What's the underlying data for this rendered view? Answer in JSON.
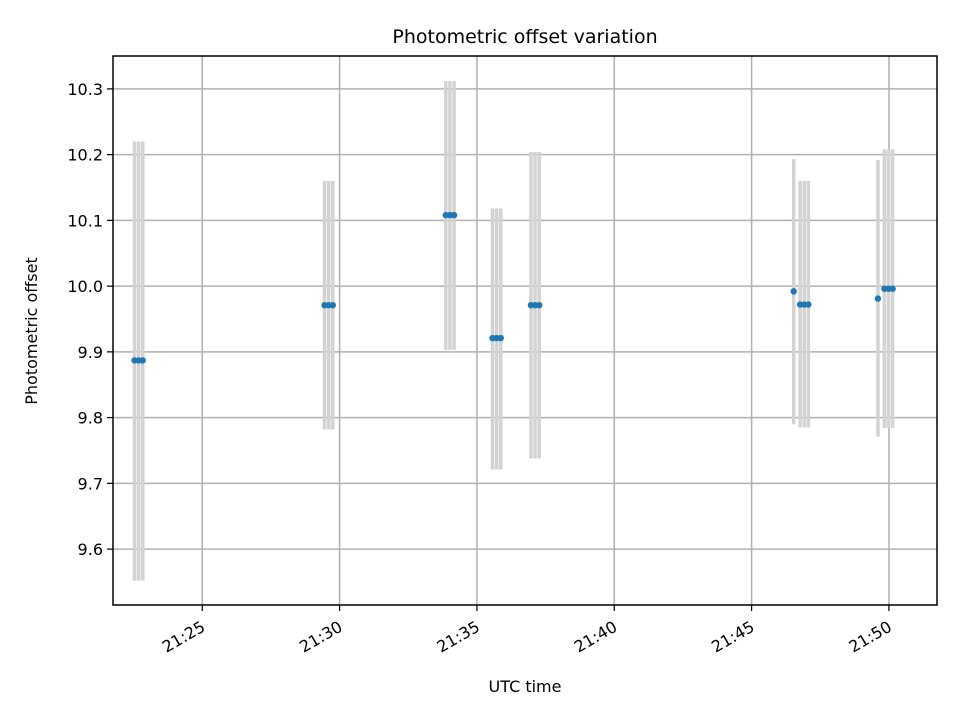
{
  "chart_data": {
    "type": "scatter",
    "title": "Photometric offset variation",
    "xlabel": "UTC time",
    "ylabel": "Photometric offset",
    "x_axis_kind": "time",
    "xlim": [
      "21:21:45",
      "21:51:45"
    ],
    "ylim": [
      9.515,
      10.35
    ],
    "x_ticks": [
      "21:25",
      "21:30",
      "21:35",
      "21:40",
      "21:45",
      "21:50"
    ],
    "y_ticks": [
      9.6,
      9.7,
      9.8,
      9.9,
      10.0,
      10.1,
      10.2,
      10.3
    ],
    "y_tick_labels": [
      "9.6",
      "9.7",
      "9.8",
      "9.9",
      "10.0",
      "10.1",
      "10.2",
      "10.3"
    ],
    "grid": true,
    "point_color": "#1f77b4",
    "errorbar_color": "#d3d3d3",
    "series": [
      {
        "points": [
          {
            "x": "21:22:32",
            "y": 9.887,
            "ylow": 9.552,
            "yhigh": 10.22
          },
          {
            "x": "21:22:41",
            "y": 9.887,
            "ylow": 9.552,
            "yhigh": 10.22
          },
          {
            "x": "21:22:50",
            "y": 9.887,
            "ylow": 9.552,
            "yhigh": 10.22
          },
          {
            "x": "21:29:27",
            "y": 9.971,
            "ylow": 9.782,
            "yhigh": 10.16
          },
          {
            "x": "21:29:36",
            "y": 9.971,
            "ylow": 9.782,
            "yhigh": 10.16
          },
          {
            "x": "21:29:45",
            "y": 9.971,
            "ylow": 9.782,
            "yhigh": 10.16
          },
          {
            "x": "21:33:52",
            "y": 10.108,
            "ylow": 9.903,
            "yhigh": 10.312
          },
          {
            "x": "21:34:01",
            "y": 10.108,
            "ylow": 9.903,
            "yhigh": 10.312
          },
          {
            "x": "21:34:10",
            "y": 10.108,
            "ylow": 9.903,
            "yhigh": 10.312
          },
          {
            "x": "21:35:34",
            "y": 9.921,
            "ylow": 9.721,
            "yhigh": 10.118
          },
          {
            "x": "21:35:43",
            "y": 9.921,
            "ylow": 9.721,
            "yhigh": 10.118
          },
          {
            "x": "21:35:52",
            "y": 9.921,
            "ylow": 9.721,
            "yhigh": 10.118
          },
          {
            "x": "21:36:58",
            "y": 9.971,
            "ylow": 9.738,
            "yhigh": 10.204
          },
          {
            "x": "21:37:07",
            "y": 9.971,
            "ylow": 9.738,
            "yhigh": 10.204
          },
          {
            "x": "21:37:16",
            "y": 9.971,
            "ylow": 9.738,
            "yhigh": 10.204
          },
          {
            "x": "21:46:32",
            "y": 9.992,
            "ylow": 9.79,
            "yhigh": 10.193
          },
          {
            "x": "21:46:46",
            "y": 9.972,
            "ylow": 9.785,
            "yhigh": 10.16
          },
          {
            "x": "21:46:55",
            "y": 9.972,
            "ylow": 9.785,
            "yhigh": 10.16
          },
          {
            "x": "21:47:04",
            "y": 9.972,
            "ylow": 9.785,
            "yhigh": 10.16
          },
          {
            "x": "21:49:36",
            "y": 9.981,
            "ylow": 9.771,
            "yhigh": 10.192
          },
          {
            "x": "21:49:50",
            "y": 9.996,
            "ylow": 9.784,
            "yhigh": 10.208
          },
          {
            "x": "21:49:59",
            "y": 9.996,
            "ylow": 9.784,
            "yhigh": 10.208
          },
          {
            "x": "21:50:08",
            "y": 9.996,
            "ylow": 9.784,
            "yhigh": 10.208
          }
        ]
      }
    ]
  }
}
